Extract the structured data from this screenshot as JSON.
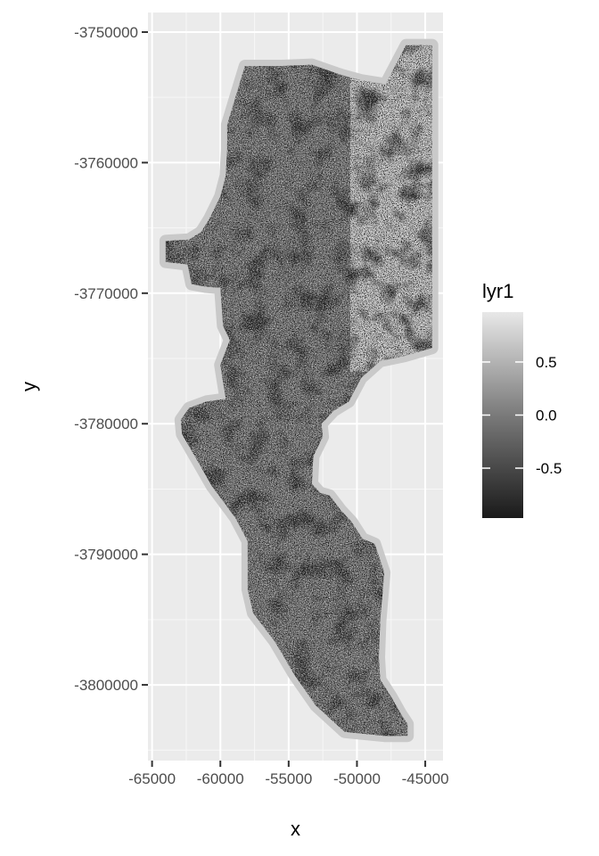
{
  "chart_data": {
    "type": "heatmap",
    "title": "",
    "xlabel": "x",
    "ylabel": "y",
    "xlim": [
      -65300,
      -43700
    ],
    "ylim": [
      -3805800,
      -3748500
    ],
    "x_ticks": [
      -65000,
      -60000,
      -55000,
      -50000,
      -45000
    ],
    "x_tick_labels": [
      "-65000",
      "-60000",
      "-55000",
      "-50000",
      "-45000"
    ],
    "y_ticks": [
      -3750000,
      -3760000,
      -3770000,
      -3780000,
      -3790000,
      -3800000
    ],
    "y_tick_labels": [
      "-3750000",
      "-3760000",
      "-3770000",
      "-3780000",
      "-3790000",
      "-3800000"
    ],
    "grid": true,
    "legend": {
      "title": "lyr1",
      "placement": "right",
      "range": [
        -0.97,
        0.97
      ],
      "breaks": [
        0.5,
        0.0,
        -0.5
      ],
      "break_labels": [
        "0.5",
        "0.0",
        "-0.5"
      ],
      "color_low": "#1a1a1a",
      "color_high": "#e8e8e8"
    },
    "raster_outline_xy": [
      [
        -58200,
        -3752600
      ],
      [
        -55500,
        -3752600
      ],
      [
        -53300,
        -3752500
      ],
      [
        -51100,
        -3753300
      ],
      [
        -49700,
        -3753700
      ],
      [
        -47900,
        -3754000
      ],
      [
        -46400,
        -3751000
      ],
      [
        -44500,
        -3751000
      ],
      [
        -44500,
        -3774200
      ],
      [
        -46500,
        -3774800
      ],
      [
        -48300,
        -3775200
      ],
      [
        -49700,
        -3776500
      ],
      [
        -50600,
        -3778300
      ],
      [
        -51700,
        -3779000
      ],
      [
        -52600,
        -3780000
      ],
      [
        -52500,
        -3781000
      ],
      [
        -53200,
        -3782500
      ],
      [
        -53300,
        -3784600
      ],
      [
        -52700,
        -3785300
      ],
      [
        -52000,
        -3785500
      ],
      [
        -51200,
        -3786600
      ],
      [
        -50400,
        -3787500
      ],
      [
        -49600,
        -3788800
      ],
      [
        -48700,
        -3789200
      ],
      [
        -48000,
        -3791400
      ],
      [
        -48300,
        -3795100
      ],
      [
        -48400,
        -3797900
      ],
      [
        -48300,
        -3799600
      ],
      [
        -47500,
        -3800900
      ],
      [
        -46800,
        -3802200
      ],
      [
        -46300,
        -3803000
      ],
      [
        -46300,
        -3803900
      ],
      [
        -48000,
        -3803900
      ],
      [
        -50900,
        -3803600
      ],
      [
        -53000,
        -3801600
      ],
      [
        -54600,
        -3799200
      ],
      [
        -56000,
        -3796700
      ],
      [
        -57600,
        -3794500
      ],
      [
        -58000,
        -3792700
      ],
      [
        -58000,
        -3789000
      ],
      [
        -58900,
        -3787200
      ],
      [
        -60600,
        -3784800
      ],
      [
        -61700,
        -3782800
      ],
      [
        -62800,
        -3780800
      ],
      [
        -62900,
        -3779700
      ],
      [
        -62300,
        -3778800
      ],
      [
        -61000,
        -3778300
      ],
      [
        -59600,
        -3778100
      ],
      [
        -60000,
        -3775500
      ],
      [
        -59300,
        -3773600
      ],
      [
        -59800,
        -3772500
      ],
      [
        -60000,
        -3769600
      ],
      [
        -61100,
        -3769500
      ],
      [
        -62100,
        -3769300
      ],
      [
        -62400,
        -3767800
      ],
      [
        -64000,
        -3767600
      ],
      [
        -64000,
        -3766000
      ],
      [
        -62300,
        -3765900
      ],
      [
        -61400,
        -3765300
      ],
      [
        -60800,
        -3764300
      ],
      [
        -60000,
        -3762600
      ],
      [
        -59600,
        -3761000
      ],
      [
        -59500,
        -3759000
      ],
      [
        -59500,
        -3757100
      ],
      [
        -58900,
        -3755000
      ]
    ]
  }
}
